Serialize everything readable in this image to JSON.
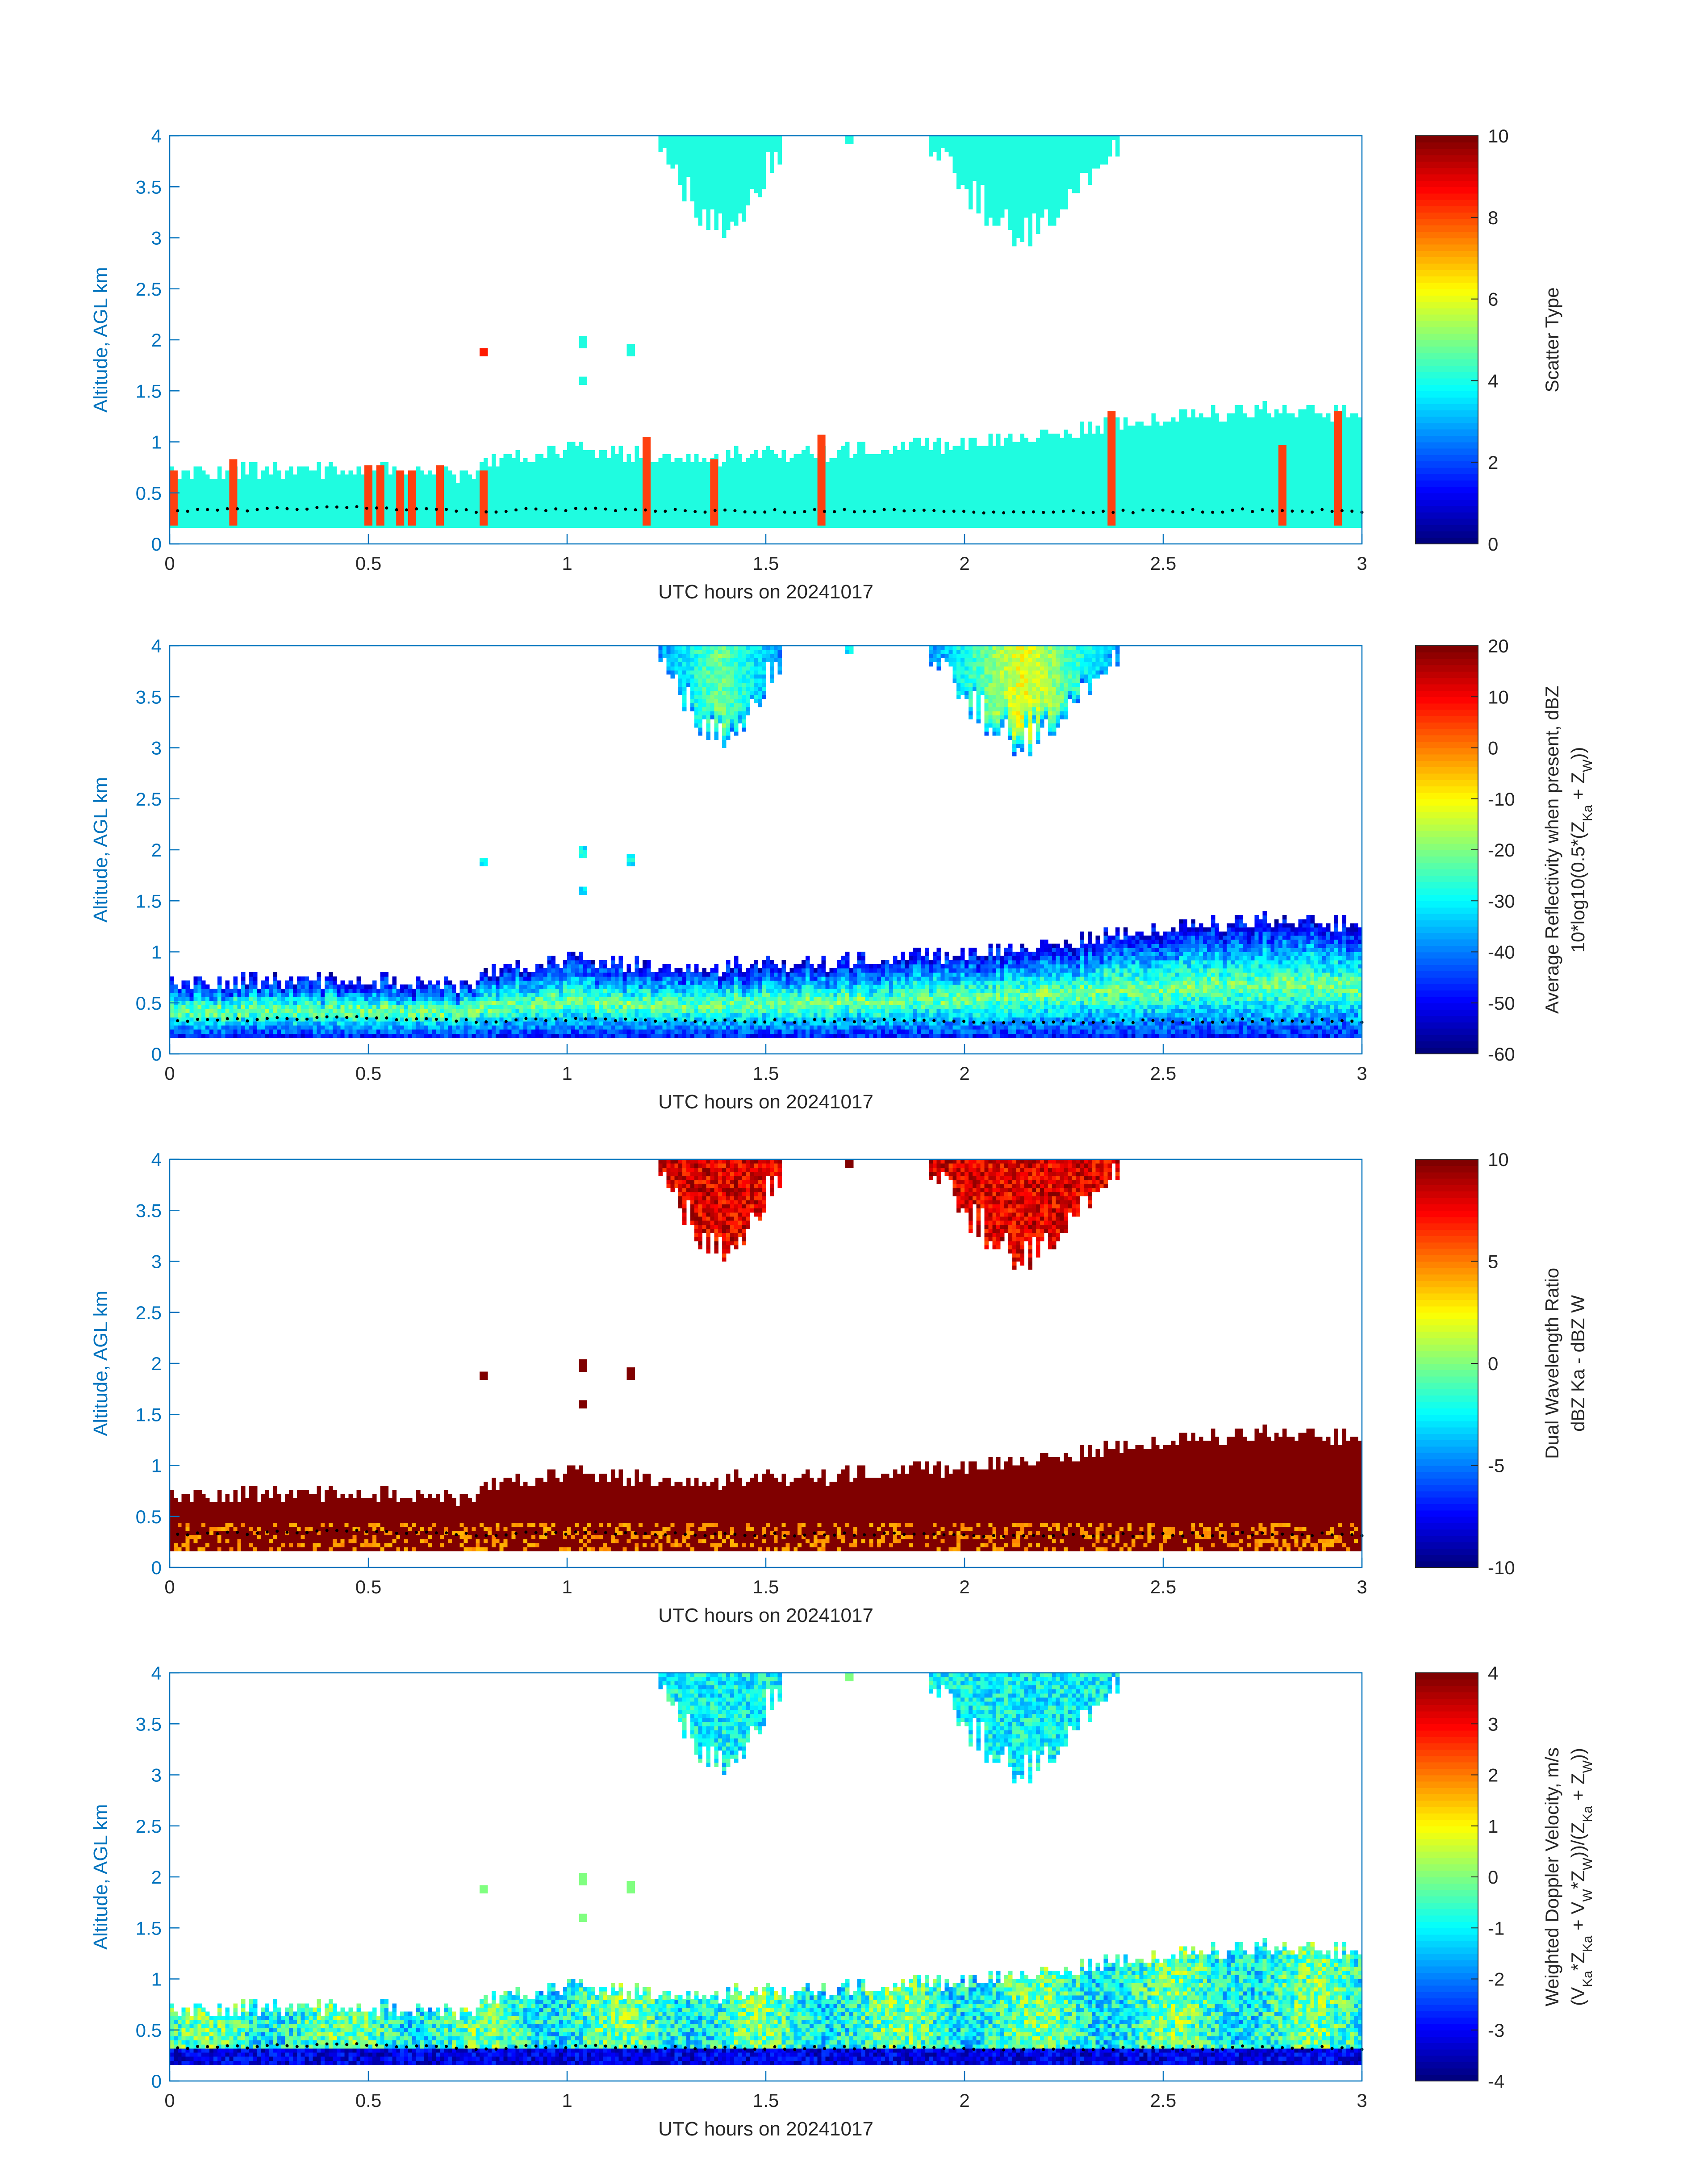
{
  "figure": {
    "colors": {
      "axis_blue": "#0072BD",
      "cloud_cyan": "#1FFCE0",
      "marker_orange": "#FF4010",
      "dot_black": "#000000",
      "colormap": "jet"
    },
    "panels": [
      {
        "ylabel": "Altitude, AGL km",
        "xlabel": "UTC hours on 20241017",
        "xticks": [
          "0",
          "0.5",
          "1",
          "1.5",
          "2",
          "2.5",
          "3"
        ],
        "yticks": [
          "0",
          "0.5",
          "1",
          "1.5",
          "2",
          "2.5",
          "3",
          "3.5",
          "4"
        ],
        "colorbar": {
          "label_lines": [
            "Scatter Type"
          ],
          "ticks": [
            "0",
            "2",
            "4",
            "6",
            "8",
            "10"
          ]
        }
      },
      {
        "ylabel": "Altitude, AGL km",
        "xlabel": "UTC hours on 20241017",
        "xticks": [
          "0",
          "0.5",
          "1",
          "1.5",
          "2",
          "2.5",
          "3"
        ],
        "yticks": [
          "0",
          "0.5",
          "1",
          "1.5",
          "2",
          "2.5",
          "3",
          "3.5",
          "4"
        ],
        "colorbar": {
          "label_lines": [
            "Average Reflectivity when present, dBZ",
            "10*log10(0.5*(Z_Ka + Z_W))"
          ],
          "ticks": [
            "-60",
            "-50",
            "-40",
            "-30",
            "-20",
            "-10",
            "0",
            "10",
            "20"
          ]
        }
      },
      {
        "ylabel": "Altitude, AGL km",
        "xlabel": "UTC hours on 20241017",
        "xticks": [
          "0",
          "0.5",
          "1",
          "1.5",
          "2",
          "2.5",
          "3"
        ],
        "yticks": [
          "0",
          "0.5",
          "1",
          "1.5",
          "2",
          "2.5",
          "3",
          "3.5",
          "4"
        ],
        "colorbar": {
          "label_lines": [
            "Dual Wavelength Ratio",
            "dBZ Ka - dBZ W"
          ],
          "ticks": [
            "-10",
            "-5",
            "0",
            "5",
            "10"
          ]
        }
      },
      {
        "ylabel": "Altitude, AGL km",
        "xlabel": "UTC hours on 20241017",
        "xticks": [
          "0",
          "0.5",
          "1",
          "1.5",
          "2",
          "2.5",
          "3"
        ],
        "yticks": [
          "0",
          "0.5",
          "1",
          "1.5",
          "2",
          "2.5",
          "3",
          "3.5",
          "4"
        ],
        "colorbar": {
          "label_lines": [
            "Weighted Doppler Velocity, m/s",
            "(V_Ka*Z_Ka + V_W*Z_W))/(Z_Ka + Z_W))"
          ],
          "ticks": [
            "-4",
            "-3",
            "-2",
            "-1",
            "0",
            "1",
            "2",
            "3",
            "4"
          ]
        }
      }
    ]
  },
  "chart_data": [
    {
      "type": "heatmap",
      "title": "",
      "xlabel": "UTC hours on 20241017",
      "ylabel": "Altitude, AGL km",
      "xlim": [
        0,
        3
      ],
      "ylim": [
        0,
        4
      ],
      "colorbar_label": "Scatter Type",
      "clim": [
        0,
        10
      ],
      "colormap": "jet",
      "boundary_layer": {
        "base_km": 0.18,
        "x": [
          0,
          0.25,
          0.5,
          0.75,
          0.8,
          0.9,
          1.0,
          1.25,
          1.5,
          1.75,
          2.0,
          2.25,
          2.5,
          2.75,
          3.0
        ],
        "top_km": [
          0.7,
          0.72,
          0.72,
          0.7,
          0.78,
          0.88,
          0.95,
          0.85,
          0.88,
          0.92,
          1.0,
          1.1,
          1.25,
          1.3,
          1.3
        ],
        "value": 4
      },
      "upper_layers": [
        {
          "x_start": 1.22,
          "x_end": 1.55,
          "top_km": 4.0,
          "min_base_km": 3.05,
          "value": 4
        },
        {
          "x_start": 1.9,
          "x_end": 2.4,
          "top_km": 4.0,
          "min_base_km": 3.02,
          "value": 4
        }
      ],
      "isolated_echoes": [
        {
          "x": 0.79,
          "y": 1.87,
          "value": 8.5
        },
        {
          "x": 1.04,
          "y": 1.98,
          "value": 4
        },
        {
          "x": 1.16,
          "y": 1.9,
          "value": 4
        },
        {
          "x": 1.04,
          "y": 1.6,
          "value": 4
        },
        {
          "x": 1.71,
          "y": 3.97,
          "value": 4
        }
      ],
      "orange_columns": {
        "value": 8.5,
        "x": [
          0.01,
          0.16,
          0.5,
          0.53,
          0.58,
          0.61,
          0.68,
          0.79,
          1.2,
          1.37,
          1.64,
          2.37,
          2.8,
          2.94
        ],
        "top_km": [
          0.72,
          0.83,
          0.77,
          0.77,
          0.72,
          0.72,
          0.77,
          0.72,
          1.05,
          0.83,
          1.07,
          1.3,
          0.97,
          1.3
        ]
      },
      "cloud_base_dots": {
        "x": [
          0.05,
          0.25,
          0.5,
          0.75,
          1.0,
          1.25,
          1.5,
          1.75,
          2.0,
          2.25,
          2.5,
          2.75,
          3.0
        ],
        "y_km": [
          0.33,
          0.34,
          0.36,
          0.32,
          0.34,
          0.33,
          0.32,
          0.33,
          0.31,
          0.31,
          0.32,
          0.33,
          0.32
        ]
      }
    },
    {
      "type": "heatmap",
      "title": "",
      "xlabel": "UTC hours on 20241017",
      "ylabel": "Altitude, AGL km",
      "xlim": [
        0,
        3
      ],
      "ylim": [
        0,
        4
      ],
      "colorbar_label": "Average Reflectivity when present, dBZ 10*log10(0.5*(Z_Ka + Z_W))",
      "clim": [
        -60,
        20
      ],
      "colormap": "jet",
      "layer_core_dBZ": -20,
      "layer_edge_dBZ": -50,
      "upper_layer_core_dBZ": -5
    },
    {
      "type": "heatmap",
      "title": "",
      "xlabel": "UTC hours on 20241017",
      "ylabel": "Altitude, AGL km",
      "xlim": [
        0,
        3
      ],
      "ylim": [
        0,
        4
      ],
      "colorbar_label": "Dual Wavelength Ratio dBZ Ka - dBZ W",
      "clim": [
        -10,
        10
      ],
      "colormap": "jet",
      "layer_dwr_dB": 10,
      "upper_layer_dwr_dB": 8,
      "low_level_patches_dB": 3
    },
    {
      "type": "heatmap",
      "title": "",
      "xlabel": "UTC hours on 20241017",
      "ylabel": "Altitude, AGL km",
      "xlim": [
        0,
        3
      ],
      "ylim": [
        0,
        4
      ],
      "colorbar_label": "Weighted Doppler Velocity, m/s (V_Ka*Z_Ka + V_W*Z_W))/(Z_Ka + Z_W))",
      "clim": [
        -4,
        4
      ],
      "colormap": "jet",
      "layer_mean_ms": -0.5,
      "near_surface_ms": -3.5,
      "upper_layer_ms": -1
    }
  ]
}
